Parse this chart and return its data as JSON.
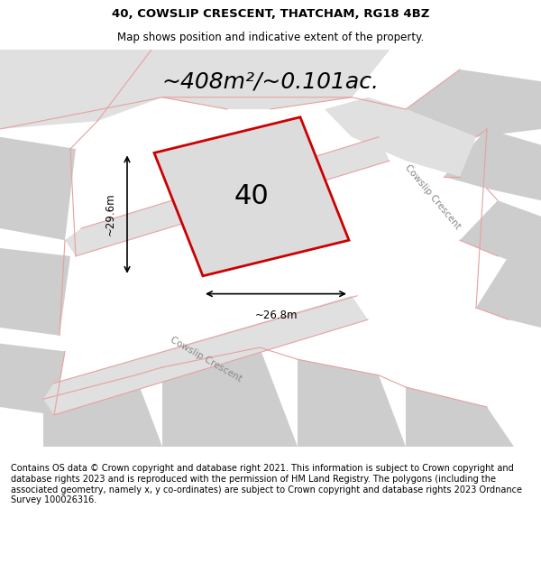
{
  "title_line1": "40, COWSLIP CRESCENT, THATCHAM, RG18 4BZ",
  "title_line2": "Map shows position and indicative extent of the property.",
  "area_text": "~408m²/~0.101ac.",
  "property_number": "40",
  "dim_width": "~26.8m",
  "dim_height": "~29.6m",
  "road_label1": "Cowslip Crescent",
  "road_label2": "Cowslip Crescent",
  "footer_text": "Contains OS data © Crown copyright and database right 2021. This information is subject to Crown copyright and database rights 2023 and is reproduced with the permission of HM Land Registry. The polygons (including the associated geometry, namely x, y co-ordinates) are subject to Crown copyright and database rights 2023 Ordnance Survey 100026316.",
  "bg_color": "#e8e8e8",
  "map_bg": "#e8e8e8",
  "road_color": "#d0d0d0",
  "block_color": "#d4d4d4",
  "plot_fill": "#e0e0e0",
  "plot_edge": "#cc0000",
  "road_line_color": "#e8a0a0",
  "title_fontsize": 9.5,
  "subtitle_fontsize": 8.5,
  "area_fontsize": 18,
  "number_fontsize": 22,
  "footer_fontsize": 7.0
}
